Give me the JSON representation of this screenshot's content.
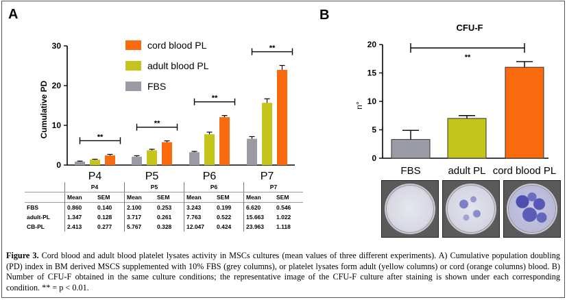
{
  "figure": {
    "panel_a_label": "A",
    "panel_b_label": "B",
    "caption_bold": "Figure 3.",
    "caption_text": " Cord blood and adult blood platelet lysates activity in MSCs cultures (mean values of three different experiments). A) Cumulative population doubling (PD) index in BM derived MSCS supplemented with 10% FBS (grey columns), or platelet lysates form adult (yellow columns) or cord (orange columns) blood. B) Number of CFU-F obtained in the same culture conditions; the representative image of the CFU-F culture after staining is shown under each corresponding condition. ** = p < 0.01."
  },
  "colors": {
    "fbs": "#9b9ba6",
    "adult": "#c5c41a",
    "cord": "#fa6a0f"
  },
  "chart_data": [
    {
      "type": "bar",
      "title": "",
      "ylabel": "Cumulative PD",
      "xlabel": "",
      "ylim": [
        0,
        30
      ],
      "yticks": [
        "0",
        "10",
        "20",
        "30"
      ],
      "categories": [
        "P4",
        "P5",
        "P6",
        "P7"
      ],
      "series": [
        {
          "name": "FBS",
          "values": [
            0.86,
            2.1,
            3.243,
            6.62
          ],
          "errors": [
            0.14,
            0.253,
            0.199,
            0.546
          ]
        },
        {
          "name": "adult blood PL",
          "values": [
            1.347,
            3.717,
            7.763,
            15.663
          ],
          "errors": [
            0.128,
            0.261,
            0.522,
            1.022
          ]
        },
        {
          "name": "cord blood PL",
          "values": [
            2.413,
            5.767,
            12.047,
            23.963
          ],
          "errors": [
            0.277,
            0.328,
            0.424,
            1.118
          ]
        }
      ],
      "legend": [
        "cord blood PL",
        "adult blood PL",
        "FBS"
      ],
      "significance": "**",
      "table": {
        "col_mean": "Mean",
        "col_sem": "SEM",
        "rows": [
          {
            "label": "FBS",
            "cells": [
              "0.860",
              "0.140",
              "2.100",
              "0.253",
              "3.243",
              "0.199",
              "6.620",
              "0.546"
            ]
          },
          {
            "label": "adult-PL",
            "cells": [
              "1.347",
              "0.128",
              "3.717",
              "0.261",
              "7.763",
              "0.522",
              "15.663",
              "1.022"
            ]
          },
          {
            "label": "CB-PL",
            "cells": [
              "2.413",
              "0.277",
              "5.767",
              "0.328",
              "12.047",
              "0.424",
              "23.963",
              "1.118"
            ]
          }
        ]
      }
    },
    {
      "type": "bar",
      "title": "CFU-F",
      "ylabel": "n°",
      "xlabel": "",
      "ylim": [
        0,
        20
      ],
      "yticks": [
        "0",
        "5",
        "10",
        "15",
        "20"
      ],
      "categories": [
        "FBS",
        "adult PL",
        "cord blood PL"
      ],
      "values": [
        3.3,
        7.0,
        16.0
      ],
      "errors": [
        1.6,
        0.5,
        1.0
      ],
      "significance": "**"
    }
  ]
}
